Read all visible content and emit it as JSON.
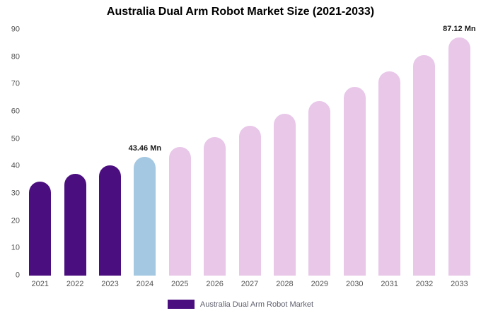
{
  "title": "Australia Dual Arm Robot Market Size (2021-2033)",
  "legend": {
    "label": "Australia Dual Arm Robot Market",
    "swatch_color": "#4A0E7F"
  },
  "colors": {
    "historical_purple": "#4A0E7F",
    "current_year_blue": "#A4C8E1",
    "forecast_pink": "#E8C7E9",
    "axis_text": "#555555",
    "annotation_text": "#1a1a1a",
    "background": "#ffffff"
  },
  "chart_data": {
    "type": "bar",
    "title": "Australia Dual Arm Robot Market Size (2021-2033)",
    "xlabel": "",
    "ylabel": "",
    "ylim": [
      0,
      90
    ],
    "yticks": [
      0,
      10,
      20,
      30,
      40,
      50,
      60,
      70,
      80,
      90
    ],
    "grid": false,
    "legend_position": "bottom",
    "categories": [
      "2021",
      "2022",
      "2023",
      "2024",
      "2025",
      "2026",
      "2027",
      "2028",
      "2029",
      "2030",
      "2031",
      "2032",
      "2033"
    ],
    "values": [
      34.47,
      37.24,
      40.23,
      43.46,
      46.95,
      50.72,
      54.79,
      59.19,
      63.95,
      69.08,
      74.63,
      80.63,
      87.12
    ],
    "bar_colors": [
      "#4A0E7F",
      "#4A0E7F",
      "#4A0E7F",
      "#A4C8E1",
      "#E8C7E9",
      "#E8C7E9",
      "#E8C7E9",
      "#E8C7E9",
      "#E8C7E9",
      "#E8C7E9",
      "#E8C7E9",
      "#E8C7E9",
      "#E8C7E9"
    ],
    "annotations": [
      {
        "category": "2024",
        "text": "43.46 Mn"
      },
      {
        "category": "2033",
        "text": "87.12 Mn"
      }
    ],
    "series_name": "Australia Dual Arm Robot Market"
  }
}
